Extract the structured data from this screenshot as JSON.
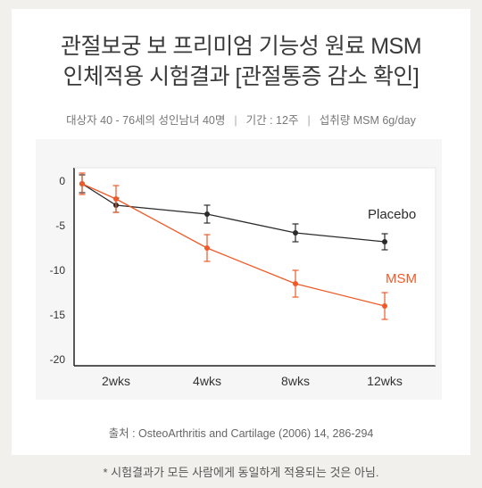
{
  "header": {
    "title_line1": "관절보궁 보 프리미엄 기능성 원료 MSM",
    "title_line2": "인체적용 시험결과 [관절통증 감소 확인]"
  },
  "study_info": {
    "subjects": "대상자 40 - 76세의 성인남녀 40명",
    "period": "기간 : 12주",
    "intake": "섭취량 MSM 6g/day"
  },
  "footer": {
    "source": "출처 : OsteoArthritis and Cartilage (2006) 14, 286-294",
    "note": "* 시험결과가 모든 사람에게 동일하게 적용되는 것은 아님."
  },
  "colors": {
    "placebo": "#2b2b2b",
    "msm": "#f05a28"
  },
  "chart_data": {
    "type": "line",
    "categories": [
      "2wks",
      "4wks",
      "8wks",
      "12wks"
    ],
    "x": [
      0,
      2,
      4,
      8,
      12
    ],
    "ylim": [
      -20,
      0
    ],
    "yticks": [
      0,
      -5,
      -10,
      -15,
      -20
    ],
    "series": [
      {
        "name": "Placebo",
        "x": [
          0,
          2,
          4,
          8,
          12
        ],
        "values": [
          -0.3,
          -2.7,
          -3.7,
          -5.8,
          -6.8
        ],
        "error": [
          1.0,
          0.8,
          1.0,
          1.0,
          0.9
        ]
      },
      {
        "name": "MSM",
        "x": [
          0,
          2,
          4,
          8,
          12
        ],
        "values": [
          -0.3,
          -2.0,
          -7.5,
          -11.5,
          -14.0
        ],
        "error": [
          1.2,
          1.5,
          1.5,
          1.5,
          1.5
        ]
      }
    ],
    "legend": "right, next to series ends"
  }
}
